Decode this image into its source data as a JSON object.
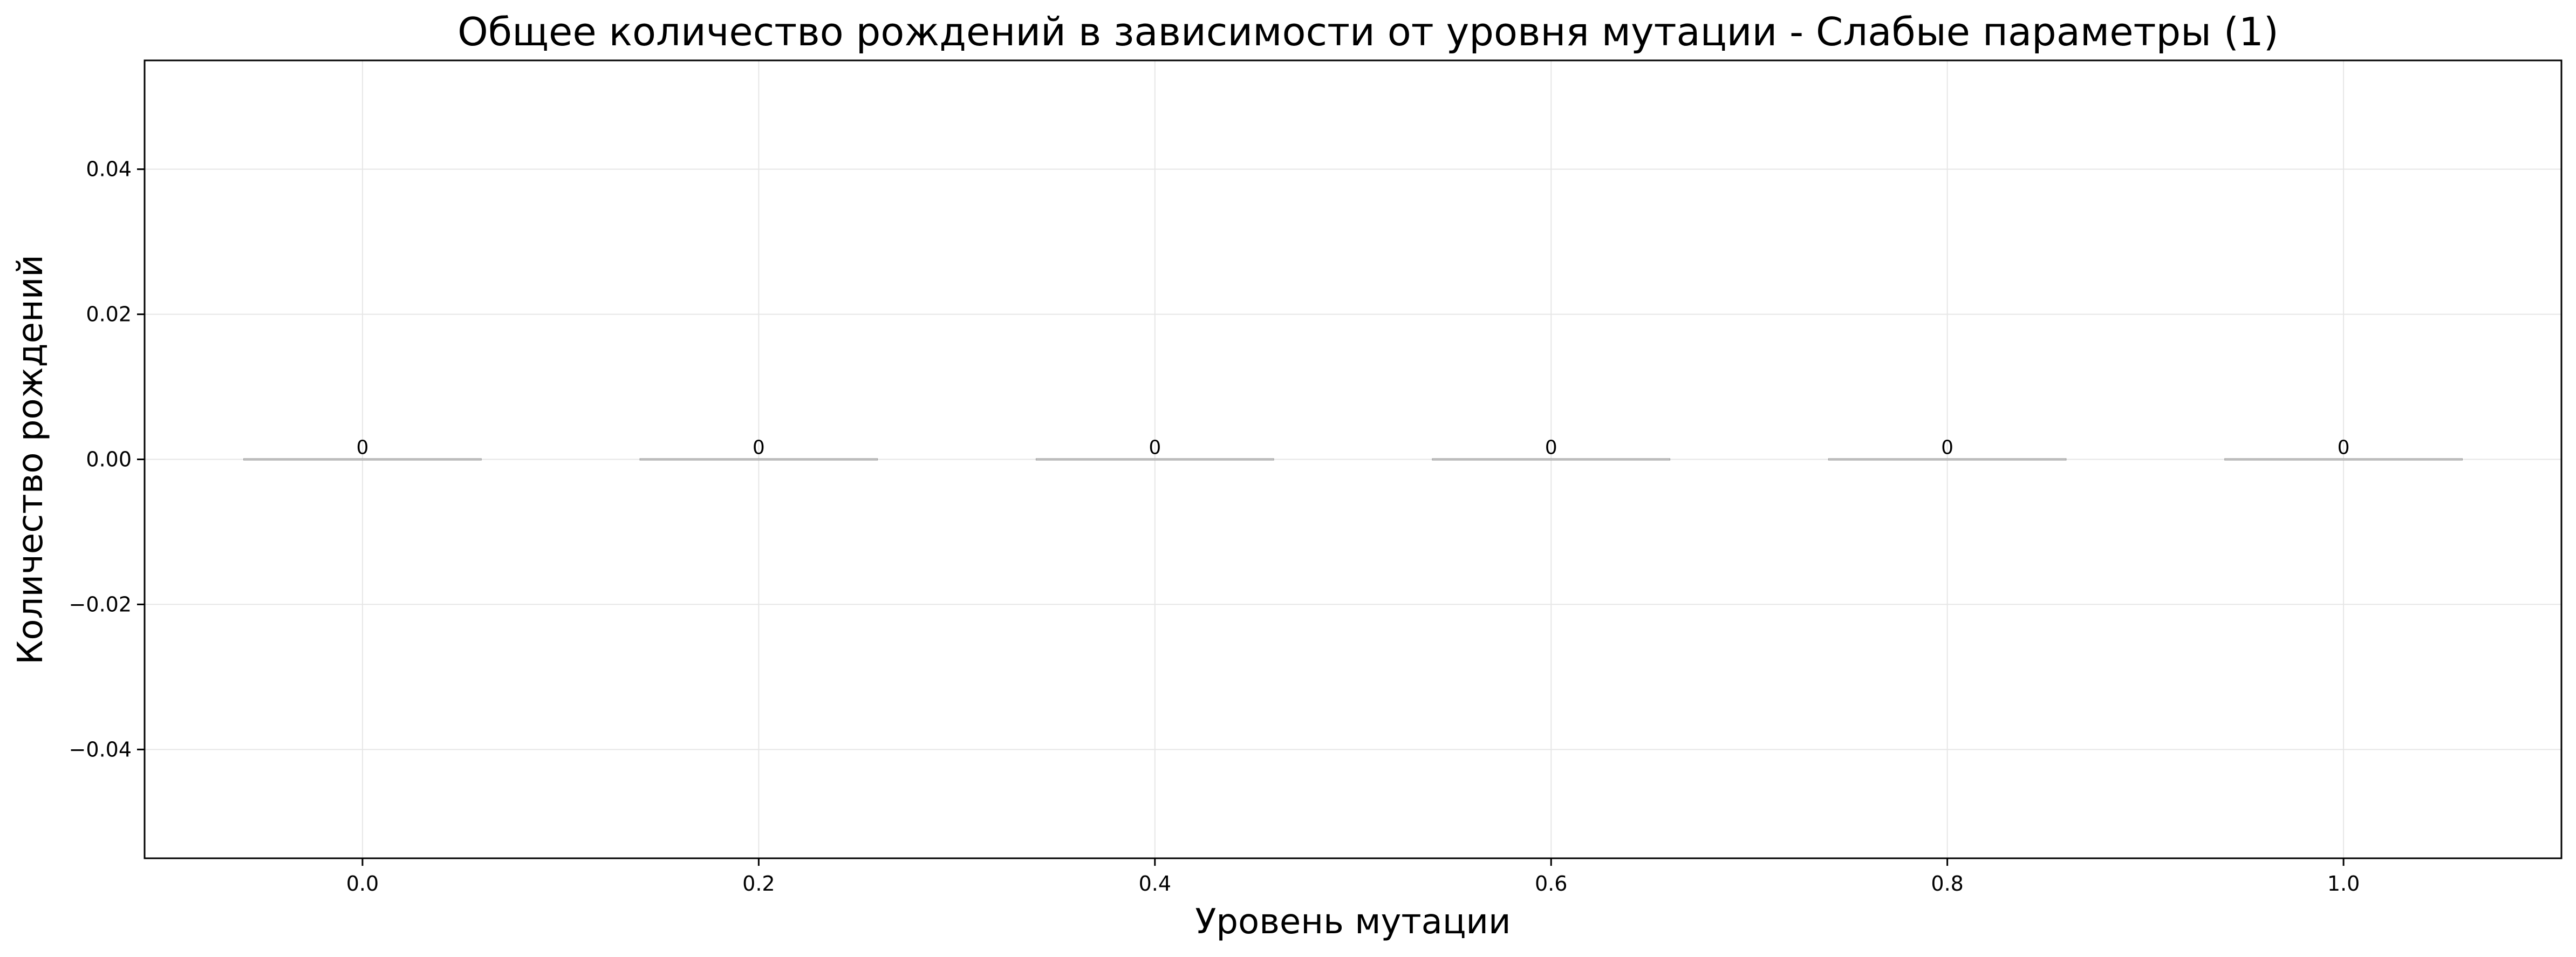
{
  "chart_data": {
    "type": "bar",
    "title": "Общее количество рождений в зависимости от уровня мутации - Слабые параметры (1)",
    "xlabel": "Уровень мутации",
    "ylabel": "Количество рождений",
    "x": [
      0.0,
      0.2,
      0.4,
      0.6,
      0.8,
      1.0
    ],
    "categories": [
      "0.0",
      "0.2",
      "0.4",
      "0.6",
      "0.8",
      "1.0"
    ],
    "values": [
      0,
      0,
      0,
      0,
      0,
      0
    ],
    "data_labels": [
      "0",
      "0",
      "0",
      "0",
      "0",
      "0"
    ],
    "xlim": [
      -0.11,
      1.11
    ],
    "ylim": [
      -0.055,
      0.055
    ],
    "yticks": [
      -0.04,
      -0.02,
      0.0,
      0.02,
      0.04
    ],
    "ytick_labels": [
      "−0.04",
      "−0.02",
      "0.00",
      "0.02",
      "0.04"
    ],
    "bar_width": 0.12,
    "grid": true,
    "legend": "none",
    "colors": {
      "bar": "#c8c8c8",
      "bar_edge": "#999999",
      "grid": "#e6e6e6",
      "axes": "#000000"
    }
  }
}
